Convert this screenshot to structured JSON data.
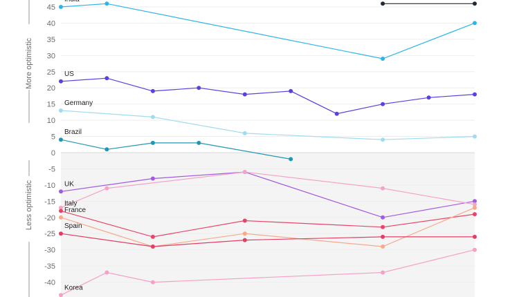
{
  "chart_data": {
    "type": "line",
    "title": "",
    "xlabel": "",
    "ylabel": "",
    "side_labels": {
      "upper": "More optimistic",
      "lower": "Less optimistic"
    },
    "ylim": [
      -43,
      46
    ],
    "yticks": [
      45,
      40,
      35,
      30,
      25,
      20,
      15,
      10,
      5,
      0,
      -5,
      -10,
      -15,
      -20,
      -25,
      -30,
      -35,
      -40
    ],
    "x": [
      1,
      2,
      3,
      4,
      5,
      6,
      7,
      8,
      9,
      10
    ],
    "shading": {
      "negative_region_fill": "#f4f4f4"
    },
    "series": [
      {
        "name": "India",
        "color": "#29b6e8",
        "values": [
          45,
          46,
          null,
          null,
          null,
          null,
          null,
          29,
          null,
          40
        ]
      },
      {
        "name": "",
        "color": "#1e2a36",
        "values": [
          null,
          null,
          null,
          null,
          null,
          null,
          null,
          46,
          null,
          46
        ]
      },
      {
        "name": "US",
        "color": "#5b3fe0",
        "values": [
          22,
          23,
          19,
          20,
          18,
          19,
          12,
          15,
          17,
          18
        ]
      },
      {
        "name": "Germany",
        "color": "#9fdcef",
        "values": [
          13,
          null,
          11,
          null,
          6,
          null,
          null,
          4,
          null,
          5
        ]
      },
      {
        "name": "Brazil",
        "color": "#1f97b3",
        "values": [
          4,
          1,
          3,
          3,
          null,
          -2,
          null,
          null,
          null,
          null
        ]
      },
      {
        "name": "UK",
        "color": "#a05be0",
        "values": [
          -12,
          null,
          -8,
          null,
          -6,
          null,
          null,
          -20,
          null,
          -15
        ]
      },
      {
        "name": "",
        "color": "#f5a3c7",
        "values": [
          -17,
          -11,
          null,
          null,
          -6,
          null,
          null,
          -11,
          null,
          -16
        ]
      },
      {
        "name": "Korea",
        "color": "#f5a0c6",
        "values": [
          -44,
          -37,
          -40,
          null,
          null,
          null,
          null,
          -37,
          null,
          -30
        ]
      },
      {
        "name": "Italy",
        "color": "#e8446a",
        "values": [
          -18,
          null,
          -26,
          null,
          -21,
          null,
          null,
          -23,
          null,
          -19
        ]
      },
      {
        "name": "France",
        "color": "#f7a98a",
        "values": [
          -20,
          null,
          -29,
          null,
          -25,
          null,
          null,
          -29,
          null,
          -17
        ]
      },
      {
        "name": "Spain",
        "color": "#e43d64",
        "values": [
          -25,
          null,
          -29,
          null,
          -27,
          null,
          null,
          -26,
          null,
          -26
        ]
      }
    ]
  }
}
